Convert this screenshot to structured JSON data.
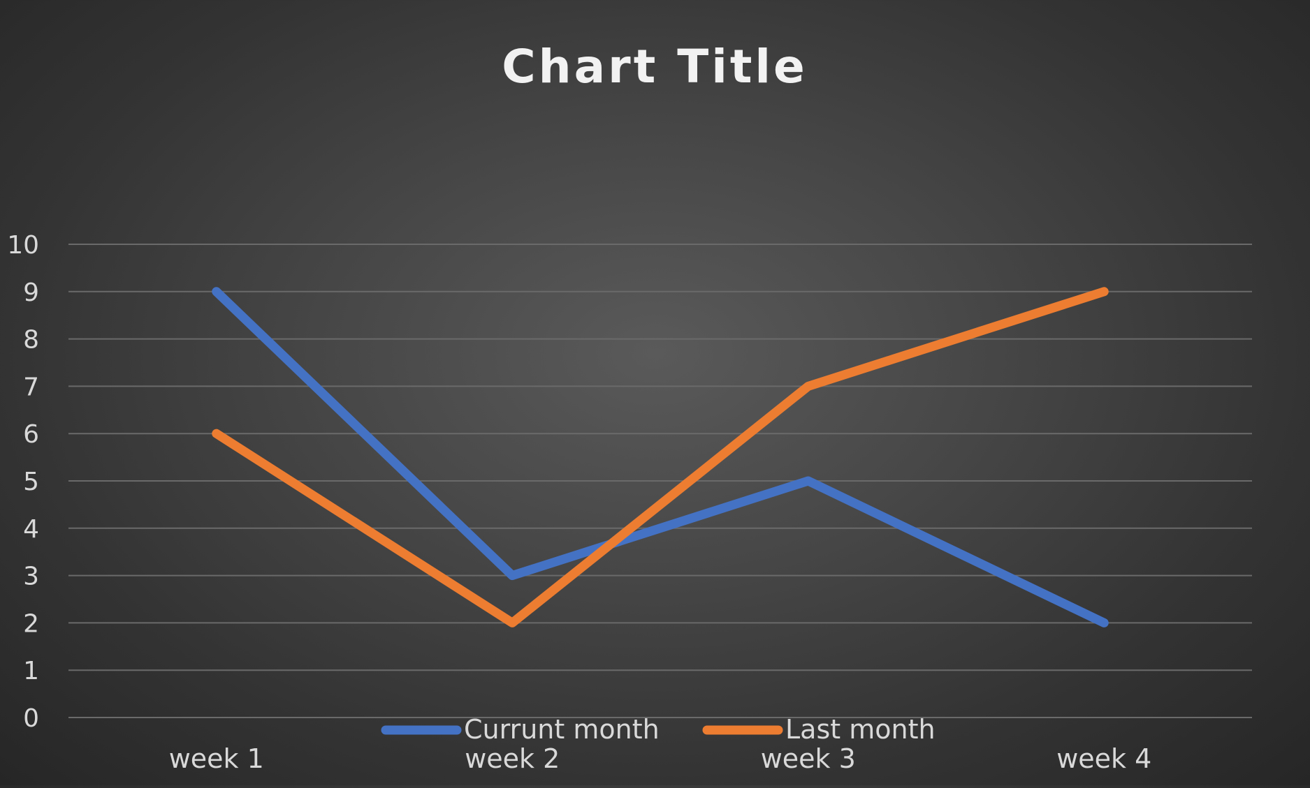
{
  "chart_data": {
    "type": "line",
    "title": "Chart Title",
    "xlabel": "",
    "ylabel": "",
    "categories": [
      "week 1",
      "week 2",
      "week 3",
      "week 4"
    ],
    "ylim": [
      0,
      10
    ],
    "yticks": [
      0,
      1,
      2,
      3,
      4,
      5,
      6,
      7,
      8,
      9,
      10
    ],
    "grid": "horizontal",
    "legend_position": "bottom",
    "series": [
      {
        "name": "Currunt month",
        "values": [
          9,
          3,
          5,
          2
        ],
        "color": "#4472C4"
      },
      {
        "name": "Last month",
        "values": [
          6,
          2,
          7,
          9
        ],
        "color": "#ED7D31"
      }
    ]
  },
  "colors": {
    "text": "#d9d9d9",
    "title": "#f2f2f2",
    "grid": "#6a6a6a"
  }
}
